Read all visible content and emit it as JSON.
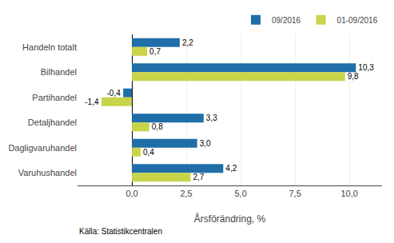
{
  "chart_data": {
    "type": "bar",
    "orientation": "horizontal",
    "categories": [
      "Handeln totalt",
      "Bilhandel",
      "Partihandel",
      "Detaljhandel",
      "Dagligvaruhandel",
      "Varuhushandel"
    ],
    "series": [
      {
        "name": "09/2016",
        "color": "#1F6EA8",
        "values": [
          2.2,
          10.3,
          -0.4,
          3.3,
          3.0,
          4.2
        ],
        "value_labels": [
          "2,2",
          "10,3",
          "-0,4",
          "3,3",
          "3,0",
          "4,2"
        ]
      },
      {
        "name": "01-09/2016",
        "color": "#C8D44A",
        "values": [
          0.7,
          9.8,
          -1.4,
          0.8,
          0.4,
          2.7
        ],
        "value_labels": [
          "0,7",
          "9,8",
          "-1,4",
          "0,8",
          "0,4",
          "2,7"
        ]
      }
    ],
    "xlabel": "Årsförändring, %",
    "xlim": [
      -2.5,
      11.5
    ],
    "xticks": [
      {
        "value": 0.0,
        "label": "0,0"
      },
      {
        "value": 2.5,
        "label": "2,5"
      },
      {
        "value": 5.0,
        "label": "5,0"
      },
      {
        "value": 7.5,
        "label": "7,5"
      },
      {
        "value": 10.0,
        "label": "10,0"
      }
    ],
    "grid": true,
    "legend": "upper right",
    "data_labels": true,
    "annotations": [
      "Källa: Statistikcentralen"
    ]
  }
}
